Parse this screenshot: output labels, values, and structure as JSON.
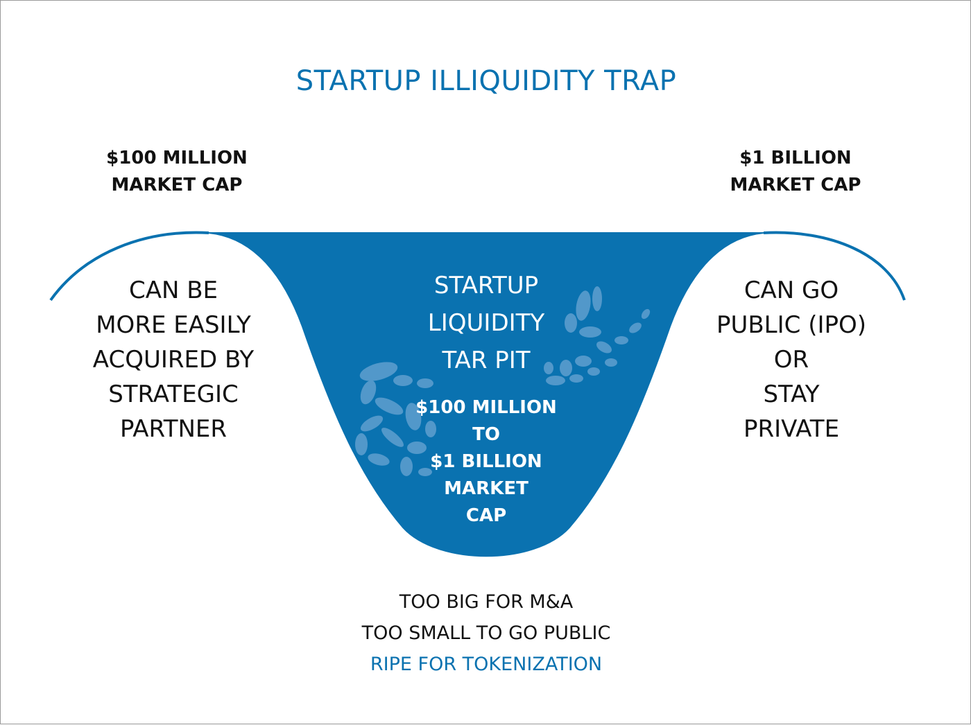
{
  "title": "STARTUP ILLIQUIDITY TRAP",
  "left_cap": [
    "$100 MILLION",
    "MARKET CAP"
  ],
  "right_cap": [
    "$1 BILLION",
    "MARKET CAP"
  ],
  "left_outcome": [
    "CAN BE",
    "MORE EASILY",
    "ACQUIRED BY",
    "STRATEGIC",
    "PARTNER"
  ],
  "right_outcome": [
    "CAN GO",
    "PUBLIC (IPO)",
    "OR",
    "STAY",
    "PRIVATE"
  ],
  "pit_title": [
    "STARTUP",
    "LIQUIDITY",
    "TAR PIT"
  ],
  "pit_range": [
    "$100 MILLION",
    "TO",
    "$1 BILLION",
    "MARKET",
    "CAP"
  ],
  "bottom": {
    "line1": "TOO BIG FOR M&A",
    "line2": "TOO SMALL TO GO PUBLIC",
    "line3": "RIPE FOR TOKENIZATION"
  },
  "colors": {
    "accent": "#0a72b0",
    "pit_fill": "#0a72b0",
    "bones": "#5f9fcf",
    "text": "#111111"
  }
}
